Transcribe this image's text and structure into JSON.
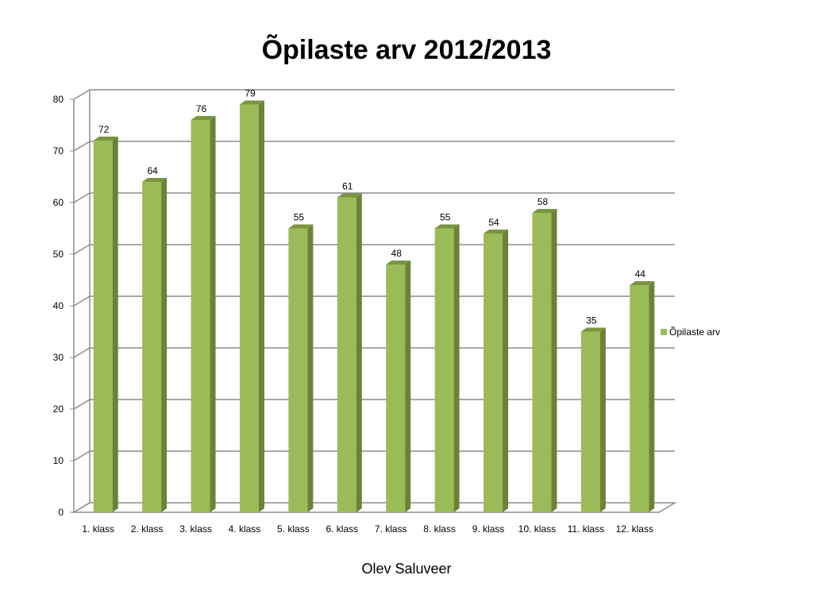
{
  "chart_data": {
    "type": "bar",
    "title": "Õpilaste arv 2012/2013",
    "categories": [
      "1. klass",
      "2. klass",
      "3. klass",
      "4. klass",
      "5. klass",
      "6. klass",
      "7. klass",
      "8. klass",
      "9. klass",
      "10. klass",
      "11. klass",
      "12. klass"
    ],
    "series": [
      {
        "name": "Õpilaste arv",
        "values": [
          72,
          64,
          76,
          79,
          55,
          61,
          48,
          55,
          54,
          58,
          35,
          44
        ]
      }
    ],
    "ylim": [
      0,
      80
    ],
    "yticks": [
      0,
      10,
      20,
      30,
      40,
      50,
      60,
      70,
      80
    ],
    "grid": true,
    "legend_position": "right",
    "colors": {
      "front": "#9bbb59",
      "side": "#6a8336",
      "top": "#7a953f"
    }
  },
  "footer": {
    "author": "Olev Saluveer"
  }
}
